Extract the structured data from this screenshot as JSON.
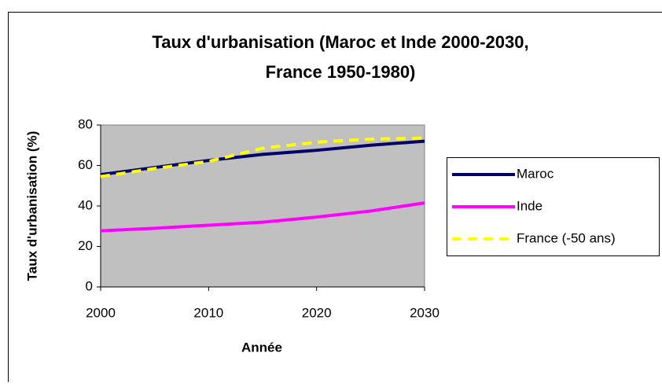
{
  "chart_data": {
    "type": "line",
    "title": [
      "Taux d'urbanisation (Maroc et Inde 2000-2030,",
      "France 1950-1980)"
    ],
    "x_label": "Année",
    "y_label": "Taux d'urbanisation (%)",
    "x": [
      2000,
      2005,
      2010,
      2015,
      2020,
      2025,
      2030
    ],
    "series": [
      {
        "name": "Maroc",
        "color": "#000066",
        "dash": false,
        "values": [
          55.5,
          59,
          62.5,
          65.5,
          67.5,
          70,
          72
        ]
      },
      {
        "name": "Inde",
        "color": "#ff00ff",
        "dash": false,
        "values": [
          27.7,
          29,
          30.5,
          32,
          34.5,
          37.5,
          41.5
        ]
      },
      {
        "name": "France (-50 ans)",
        "color": "#ffff00",
        "dash": true,
        "values": [
          54.5,
          58.5,
          62,
          68.5,
          71.5,
          73,
          73.5
        ]
      }
    ],
    "xlim": [
      2000,
      2030
    ],
    "xticks": [
      2000,
      2010,
      2020,
      2030
    ],
    "ylim": [
      0,
      80
    ],
    "yticks": [
      0,
      20,
      40,
      60,
      80
    ],
    "legend": "right",
    "plot_background": "#c0c0c0"
  }
}
